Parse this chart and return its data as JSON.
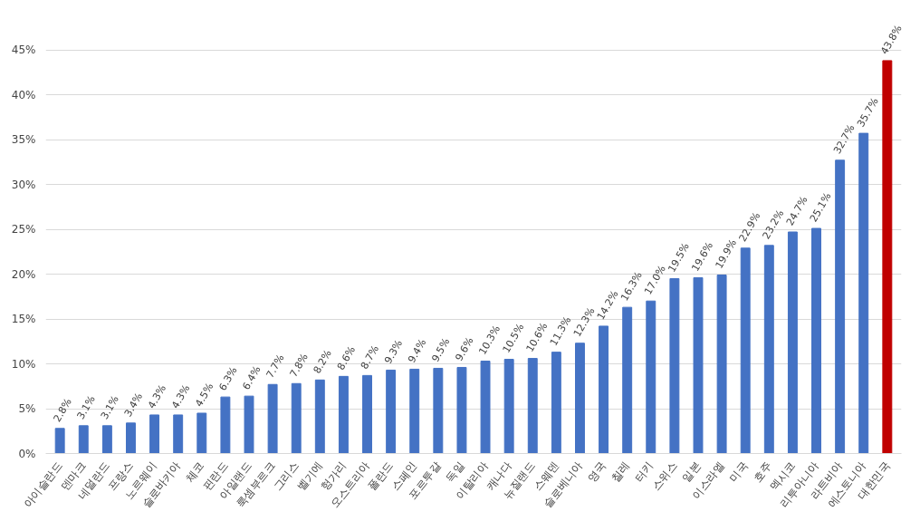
{
  "chart_data": {
    "type": "bar",
    "categories": [
      "아이슬란드",
      "덴마크",
      "네덜란드",
      "프랑스",
      "노르웨이",
      "슬로바키아",
      "체코",
      "핀란드",
      "아일랜드",
      "룩셈부르크",
      "그리스",
      "벨기에",
      "헝가리",
      "오스트리아",
      "폴란드",
      "스페인",
      "포르투갈",
      "독일",
      "이탈리아",
      "캐나다",
      "뉴질랜드",
      "스웨덴",
      "슬로베니아",
      "영국",
      "칠레",
      "터키",
      "스위스",
      "일본",
      "이스라엘",
      "미국",
      "호주",
      "멕시코",
      "리투아니아",
      "라트비아",
      "에스토니아",
      "대한민국"
    ],
    "values": [
      2.8,
      3.1,
      3.1,
      3.4,
      4.3,
      4.3,
      4.5,
      6.3,
      6.4,
      7.7,
      7.8,
      8.2,
      8.6,
      8.7,
      9.3,
      9.4,
      9.5,
      9.6,
      10.3,
      10.5,
      10.6,
      11.3,
      12.3,
      14.2,
      16.3,
      17.0,
      19.5,
      19.6,
      19.9,
      22.9,
      23.2,
      24.7,
      25.1,
      32.7,
      35.7,
      43.8
    ],
    "value_labels": [
      "2.8%",
      "3.1%",
      "3.1%",
      "3.4%",
      "4.3%",
      "4.3%",
      "4.5%",
      "6.3%",
      "6.4%",
      "7.7%",
      "7.8%",
      "8.2%",
      "8.6%",
      "8.7%",
      "9.3%",
      "9.4%",
      "9.5%",
      "9.6%",
      "10.3%",
      "10.5%",
      "10.6%",
      "11.3%",
      "12.3%",
      "14.2%",
      "16.3%",
      "17.0%",
      "19.5%",
      "19.6%",
      "19.9%",
      "22.9%",
      "23.2%",
      "24.7%",
      "25.1%",
      "32.7%",
      "35.7%",
      "43.8%"
    ],
    "colors": [
      "#4472c4",
      "#4472c4",
      "#4472c4",
      "#4472c4",
      "#4472c4",
      "#4472c4",
      "#4472c4",
      "#4472c4",
      "#4472c4",
      "#4472c4",
      "#4472c4",
      "#4472c4",
      "#4472c4",
      "#4472c4",
      "#4472c4",
      "#4472c4",
      "#4472c4",
      "#4472c4",
      "#4472c4",
      "#4472c4",
      "#4472c4",
      "#4472c4",
      "#4472c4",
      "#4472c4",
      "#4472c4",
      "#4472c4",
      "#4472c4",
      "#4472c4",
      "#4472c4",
      "#4472c4",
      "#4472c4",
      "#4472c4",
      "#4472c4",
      "#4472c4",
      "#4472c4",
      "#c00000"
    ],
    "ylim": [
      0,
      45
    ],
    "yticks": [
      {
        "value": 0,
        "label": "0%"
      },
      {
        "value": 5,
        "label": "5%"
      },
      {
        "value": 10,
        "label": "10%"
      },
      {
        "value": 15,
        "label": "15%"
      },
      {
        "value": 20,
        "label": "20%"
      },
      {
        "value": 25,
        "label": "25%"
      },
      {
        "value": 30,
        "label": "30%"
      },
      {
        "value": 35,
        "label": "35%"
      },
      {
        "value": 40,
        "label": "40%"
      },
      {
        "value": 45,
        "label": "45%"
      }
    ],
    "grid": "y",
    "legend": false
  }
}
